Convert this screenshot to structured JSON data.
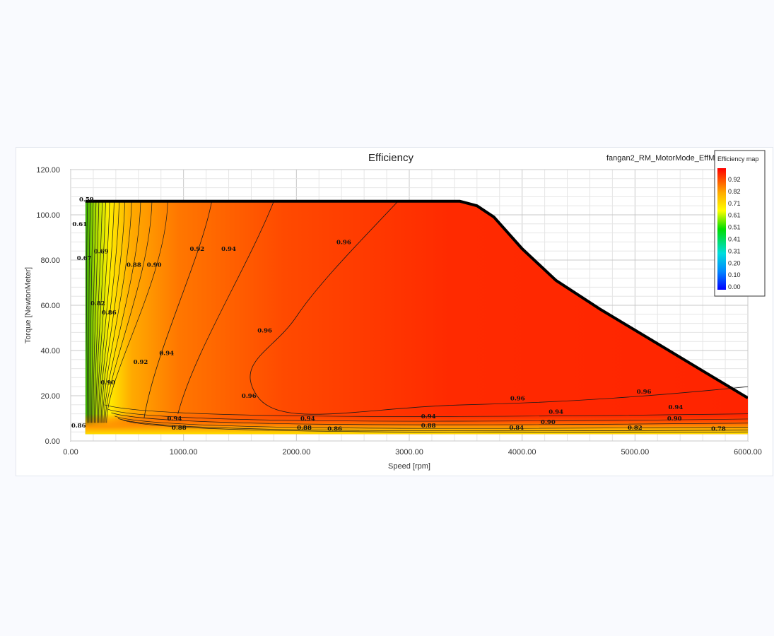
{
  "chart_data": {
    "type": "heatmap",
    "title": "Efficiency",
    "subtitle": "fangan2_RM_MotorMode_EffM",
    "xlabel": "Speed [rpm]",
    "ylabel": "Torque [NewtonMeter]",
    "xlim": [
      0,
      6000
    ],
    "ylim": [
      0,
      120
    ],
    "xticks": [
      "0.00",
      "1000.00",
      "2000.00",
      "3000.00",
      "4000.00",
      "5000.00",
      "6000.00"
    ],
    "yticks": [
      "0.00",
      "20.00",
      "40.00",
      "60.00",
      "80.00",
      "100.00",
      "120.00"
    ],
    "grid": true,
    "legend": {
      "title": "Efficiency map",
      "placement": "top-right",
      "levels": [
        "0.92",
        "0.82",
        "0.71",
        "0.61",
        "0.51",
        "0.41",
        "0.31",
        "0.20",
        "0.10",
        "0.00"
      ]
    },
    "colors": {
      "high": "#ff2200",
      "mid": "#ffff00",
      "low": "#0000ff",
      "boundary": "#000000"
    },
    "boundary": {
      "x": [
        130,
        3450,
        3600,
        3750,
        4000,
        4300,
        4700,
        5200,
        5600,
        6000
      ],
      "y": [
        106,
        106,
        104,
        99,
        85,
        71,
        58,
        43,
        31,
        19
      ]
    },
    "contours": [
      {
        "level": "0.59",
        "x": 140,
        "y": 106
      },
      {
        "level": "0.61",
        "x": 80,
        "y": 95
      },
      {
        "level": "0.67",
        "x": 120,
        "y": 80
      },
      {
        "level": "0.69",
        "x": 270,
        "y": 83
      },
      {
        "level": "0.88",
        "x": 560,
        "y": 77
      },
      {
        "level": "0.90",
        "x": 740,
        "y": 77
      },
      {
        "level": "0.92",
        "x": 1120,
        "y": 84
      },
      {
        "level": "0.94",
        "x": 1400,
        "y": 84
      },
      {
        "level": "0.96",
        "x": 2420,
        "y": 87
      },
      {
        "level": "0.82",
        "x": 240,
        "y": 60
      },
      {
        "level": "0.86",
        "x": 340,
        "y": 56
      },
      {
        "level": "0.96",
        "x": 1720,
        "y": 48
      },
      {
        "level": "0.94",
        "x": 850,
        "y": 38
      },
      {
        "level": "0.92",
        "x": 620,
        "y": 34
      },
      {
        "level": "0.90",
        "x": 330,
        "y": 25
      },
      {
        "level": "0.96",
        "x": 1580,
        "y": 19
      },
      {
        "level": "0.86",
        "x": 70,
        "y": 6
      },
      {
        "level": "0.94",
        "x": 920,
        "y": 9
      },
      {
        "level": "0.88",
        "x": 960,
        "y": 5
      },
      {
        "level": "0.94",
        "x": 2100,
        "y": 9
      },
      {
        "level": "0.88",
        "x": 2070,
        "y": 5
      },
      {
        "level": "0.86",
        "x": 2340,
        "y": 4.5
      },
      {
        "level": "0.94",
        "x": 3170,
        "y": 10
      },
      {
        "level": "0.88",
        "x": 3170,
        "y": 6
      },
      {
        "level": "0.96",
        "x": 3960,
        "y": 18
      },
      {
        "level": "0.94",
        "x": 4300,
        "y": 12
      },
      {
        "level": "0.90",
        "x": 4230,
        "y": 7.5
      },
      {
        "level": "0.84",
        "x": 3950,
        "y": 5
      },
      {
        "level": "0.96",
        "x": 5080,
        "y": 21
      },
      {
        "level": "0.94",
        "x": 5360,
        "y": 14
      },
      {
        "level": "0.90",
        "x": 5350,
        "y": 9
      },
      {
        "level": "0.82",
        "x": 5000,
        "y": 5
      },
      {
        "level": "0.78",
        "x": 5740,
        "y": 4.5
      }
    ]
  }
}
